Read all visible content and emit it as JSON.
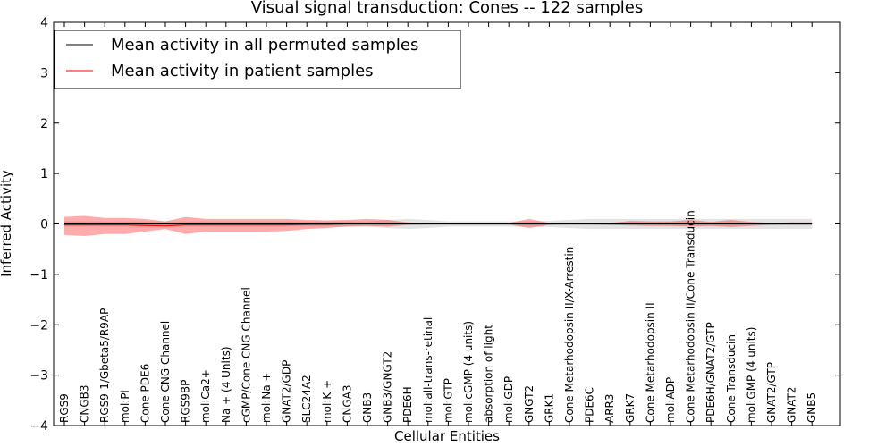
{
  "chart_data": {
    "type": "line",
    "title": "Visual signal transduction: Cones -- 122 samples",
    "xlabel": "Cellular Entities",
    "ylabel": "Inferred Activity",
    "ylim": [
      -4,
      4
    ],
    "yticks": [
      "4",
      "3",
      "2",
      "1",
      "0",
      "−1",
      "−2",
      "−3",
      "−4"
    ],
    "ytick_values": [
      4,
      3,
      2,
      1,
      0,
      -1,
      -2,
      -3,
      -4
    ],
    "grid": false,
    "legend_position": "top-left",
    "categories": [
      "RGS9",
      "CNGB3",
      "RGS9-1/Gbeta5/R9AP",
      "mol:Pi",
      "Cone PDE6",
      "Cone CNG Channel",
      "RGS9BP",
      "mol:Ca2+",
      "Na + (4 Units)",
      "cGMP/Cone CNG Channel",
      "mol:Na +",
      "GNAT2/GDP",
      "SLC24A2",
      "mol:K +",
      "CNGA3",
      "GNB3",
      "GNB3/GNGT2",
      "PDE6H",
      "mol:all-trans-retinal",
      "mol:GTP",
      "mol:cGMP (4 units)",
      "absorption of light",
      "mol:GDP",
      "GNGT2",
      "GRK1",
      "Cone Metarhodopsin II/X-Arrestin",
      "PDE6C",
      "ARR3",
      "GRK7",
      "Cone Metarhodopsin II",
      "mol:ADP",
      "Cone Metarhodopsin II/Cone Transducin",
      "PDE6H/GNAT2/GTP",
      "Cone Transducin",
      "mol:GMP (4 units)",
      "GNAT2/GTP",
      "GNAT2",
      "GNB5"
    ],
    "series": [
      {
        "name": "Mean activity in all permuted samples",
        "color": "#000000",
        "values": [
          0.0,
          0.0,
          0.0,
          0.0,
          0.0,
          0.0,
          0.0,
          0.0,
          0.0,
          0.0,
          0.0,
          0.0,
          0.0,
          0.0,
          0.0,
          0.0,
          0.0,
          0.0,
          0.0,
          0.0,
          0.0,
          0.0,
          0.0,
          0.0,
          0.0,
          0.0,
          0.0,
          0.0,
          0.0,
          0.0,
          0.0,
          0.0,
          0.0,
          0.0,
          0.0,
          0.0,
          0.0,
          0.0
        ],
        "band_low": [
          -0.05,
          -0.05,
          -0.05,
          -0.05,
          -0.05,
          -0.05,
          -0.05,
          -0.05,
          -0.05,
          -0.05,
          -0.05,
          -0.05,
          -0.05,
          -0.05,
          -0.05,
          -0.05,
          -0.08,
          -0.1,
          -0.08,
          -0.05,
          -0.05,
          -0.05,
          -0.05,
          -0.05,
          -0.06,
          -0.08,
          -0.1,
          -0.1,
          -0.1,
          -0.1,
          -0.1,
          -0.1,
          -0.1,
          -0.1,
          -0.1,
          -0.1,
          -0.1,
          -0.1
        ],
        "band_high": [
          0.05,
          0.05,
          0.05,
          0.05,
          0.05,
          0.05,
          0.05,
          0.05,
          0.05,
          0.05,
          0.05,
          0.05,
          0.05,
          0.05,
          0.05,
          0.05,
          0.08,
          0.1,
          0.08,
          0.05,
          0.05,
          0.05,
          0.05,
          0.05,
          0.06,
          0.08,
          0.1,
          0.1,
          0.1,
          0.1,
          0.1,
          0.1,
          0.1,
          0.1,
          0.1,
          0.1,
          0.1,
          0.1
        ]
      },
      {
        "name": "Mean activity in patient samples",
        "color": "#ff0000",
        "values": [
          -0.02,
          -0.02,
          -0.02,
          -0.02,
          -0.03,
          -0.04,
          -0.02,
          -0.02,
          -0.02,
          -0.02,
          -0.02,
          -0.02,
          -0.01,
          -0.01,
          0.0,
          0.0,
          0.0,
          0.0,
          0.0,
          0.0,
          0.0,
          0.0,
          0.0,
          0.01,
          0.0,
          0.0,
          0.0,
          0.0,
          0.01,
          0.01,
          0.0,
          0.01,
          0.0,
          0.01,
          0.0,
          0.0,
          0.01,
          0.01
        ],
        "band_low": [
          -0.22,
          -0.24,
          -0.2,
          -0.2,
          -0.15,
          -0.1,
          -0.2,
          -0.15,
          -0.15,
          -0.15,
          -0.15,
          -0.14,
          -0.1,
          -0.08,
          -0.05,
          -0.04,
          -0.05,
          -0.02,
          -0.01,
          -0.01,
          -0.01,
          -0.01,
          -0.01,
          -0.08,
          -0.02,
          -0.01,
          -0.01,
          -0.02,
          -0.03,
          -0.04,
          -0.04,
          -0.05,
          -0.04,
          -0.06,
          -0.04,
          -0.02,
          -0.02,
          -0.02
        ],
        "band_high": [
          0.14,
          0.16,
          0.12,
          0.12,
          0.1,
          0.05,
          0.14,
          0.1,
          0.1,
          0.1,
          0.1,
          0.1,
          0.08,
          0.07,
          0.08,
          0.1,
          0.08,
          0.03,
          0.02,
          0.02,
          0.02,
          0.02,
          0.02,
          0.1,
          0.02,
          0.02,
          0.02,
          0.02,
          0.06,
          0.05,
          0.05,
          0.08,
          0.04,
          0.08,
          0.04,
          0.02,
          0.03,
          0.03
        ]
      }
    ]
  }
}
